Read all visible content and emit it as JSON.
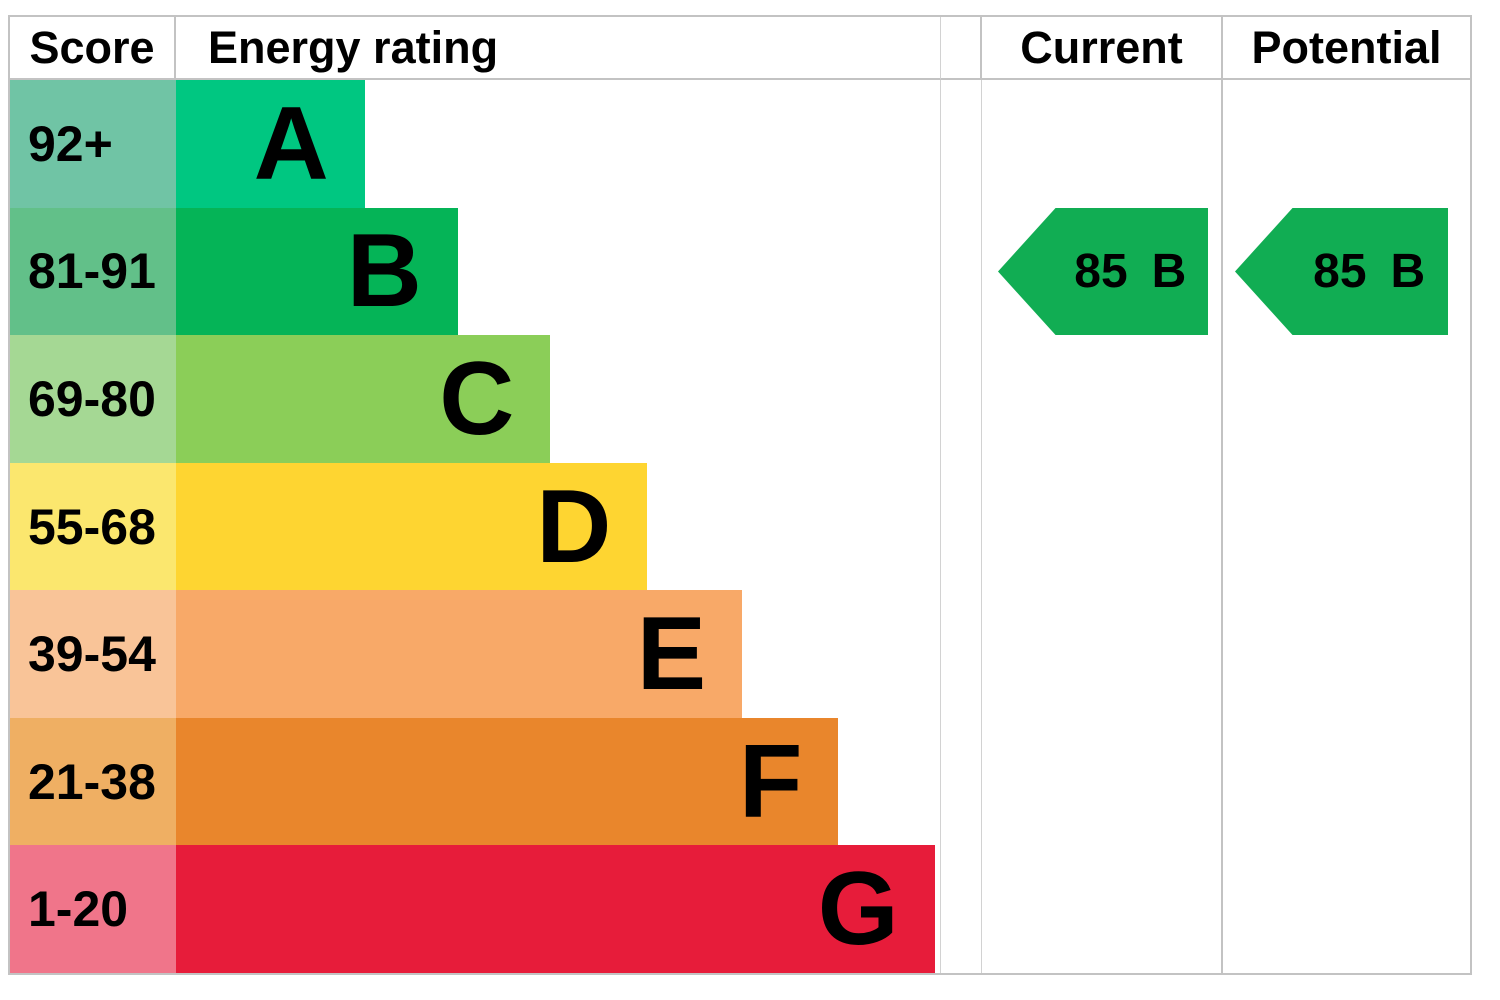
{
  "header": {
    "score": "Score",
    "rating": "Energy rating",
    "current": "Current",
    "potential": "Potential"
  },
  "bands": [
    {
      "score": "92+",
      "letter": "A",
      "bar_color": "#00c781",
      "score_color": "#70c4a5",
      "width_pct": "24.7%"
    },
    {
      "score": "81-91",
      "letter": "B",
      "bar_color": "#05b457",
      "score_color": "#62c089",
      "width_pct": "36.9%"
    },
    {
      "score": "69-80",
      "letter": "C",
      "bar_color": "#8bce58",
      "score_color": "#a5d894",
      "width_pct": "49.0%"
    },
    {
      "score": "55-68",
      "letter": "D",
      "bar_color": "#fed531",
      "score_color": "#fbe76e",
      "width_pct": "61.7%"
    },
    {
      "score": "39-54",
      "letter": "E",
      "bar_color": "#f8a968",
      "score_color": "#f9c498",
      "width_pct": "74.1%"
    },
    {
      "score": "21-38",
      "letter": "F",
      "bar_color": "#e9862c",
      "score_color": "#efaf63",
      "width_pct": "86.7%"
    },
    {
      "score": "1-20",
      "letter": "G",
      "bar_color": "#e71c3a",
      "score_color": "#f0758a",
      "width_pct": "99.3%"
    }
  ],
  "current": {
    "value": "85",
    "band": "B",
    "arrow_color": "#11ad53"
  },
  "potential": {
    "value": "85",
    "band": "B",
    "arrow_color": "#11ad53"
  },
  "chart_data": {
    "type": "bar",
    "title": "Energy rating (EPC) chart",
    "categories": [
      "A",
      "B",
      "C",
      "D",
      "E",
      "F",
      "G"
    ],
    "score_ranges": [
      "92+",
      "81-91",
      "69-80",
      "55-68",
      "39-54",
      "21-38",
      "1-20"
    ],
    "bar_width_fractions": [
      0.247,
      0.369,
      0.49,
      0.617,
      0.741,
      0.867,
      0.993
    ],
    "band_colors": [
      "#00c781",
      "#05b457",
      "#8bce58",
      "#fed531",
      "#f8a968",
      "#e9862c",
      "#e71c3a"
    ],
    "score_tint_colors": [
      "#70c4a5",
      "#62c089",
      "#a5d894",
      "#fbe76e",
      "#f9c498",
      "#efaf63",
      "#f0758a"
    ],
    "columns": [
      "Score",
      "Energy rating",
      "Current",
      "Potential"
    ],
    "current_rating": {
      "score": 85,
      "band": "B"
    },
    "potential_rating": {
      "score": 85,
      "band": "B"
    },
    "arrow_color": "#11ad53",
    "arrow_row_band": "B",
    "legend_position": "none",
    "grid": "off"
  }
}
